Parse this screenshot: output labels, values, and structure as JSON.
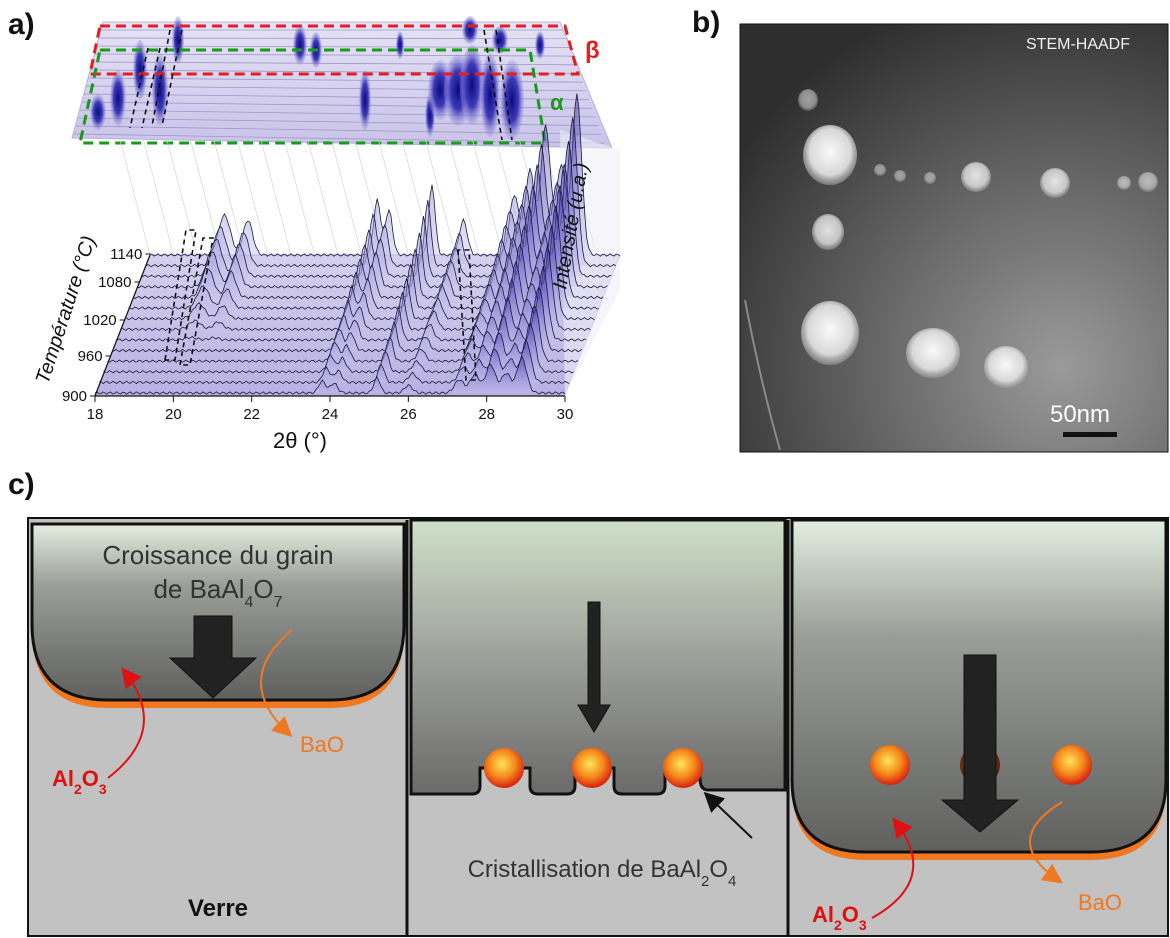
{
  "panels": {
    "a": {
      "label": "a)",
      "temperature_label": "Température (°C)",
      "intensity_label": "Intensité (u.a.)",
      "x_axis_label": "2θ (°)",
      "x_ticks": [
        "18",
        "20",
        "22",
        "24",
        "26",
        "28",
        "30"
      ],
      "temperature_ticks": [
        "1140",
        "1080",
        "1020",
        "960",
        "900"
      ],
      "phase_beta": "β",
      "phase_alpha": "α",
      "beta_color": "#e02020",
      "alpha_color": "#1a9a1a"
    },
    "b": {
      "label": "b)",
      "technique": "STEM-HAADF",
      "scale_bar": "50nm"
    },
    "c": {
      "label": "c)",
      "step1_title_line1": "Croissance du grain",
      "step1_title_line2_pre": "de BaAl",
      "step1_title_sub1": "4",
      "step1_title_mid": "O",
      "step1_title_sub2": "7",
      "al2o3_pre": "Al",
      "al2o3_sub1": "2",
      "al2o3_mid": "O",
      "al2o3_sub2": "3",
      "bao": "BaO",
      "verre": "Verre",
      "cryst_pre": "Cristallisation de BaAl",
      "cryst_sub1": "2",
      "cryst_mid": "O",
      "cryst_sub2": "4",
      "red_color": "#e01010",
      "orange_color": "#f07820"
    }
  }
}
